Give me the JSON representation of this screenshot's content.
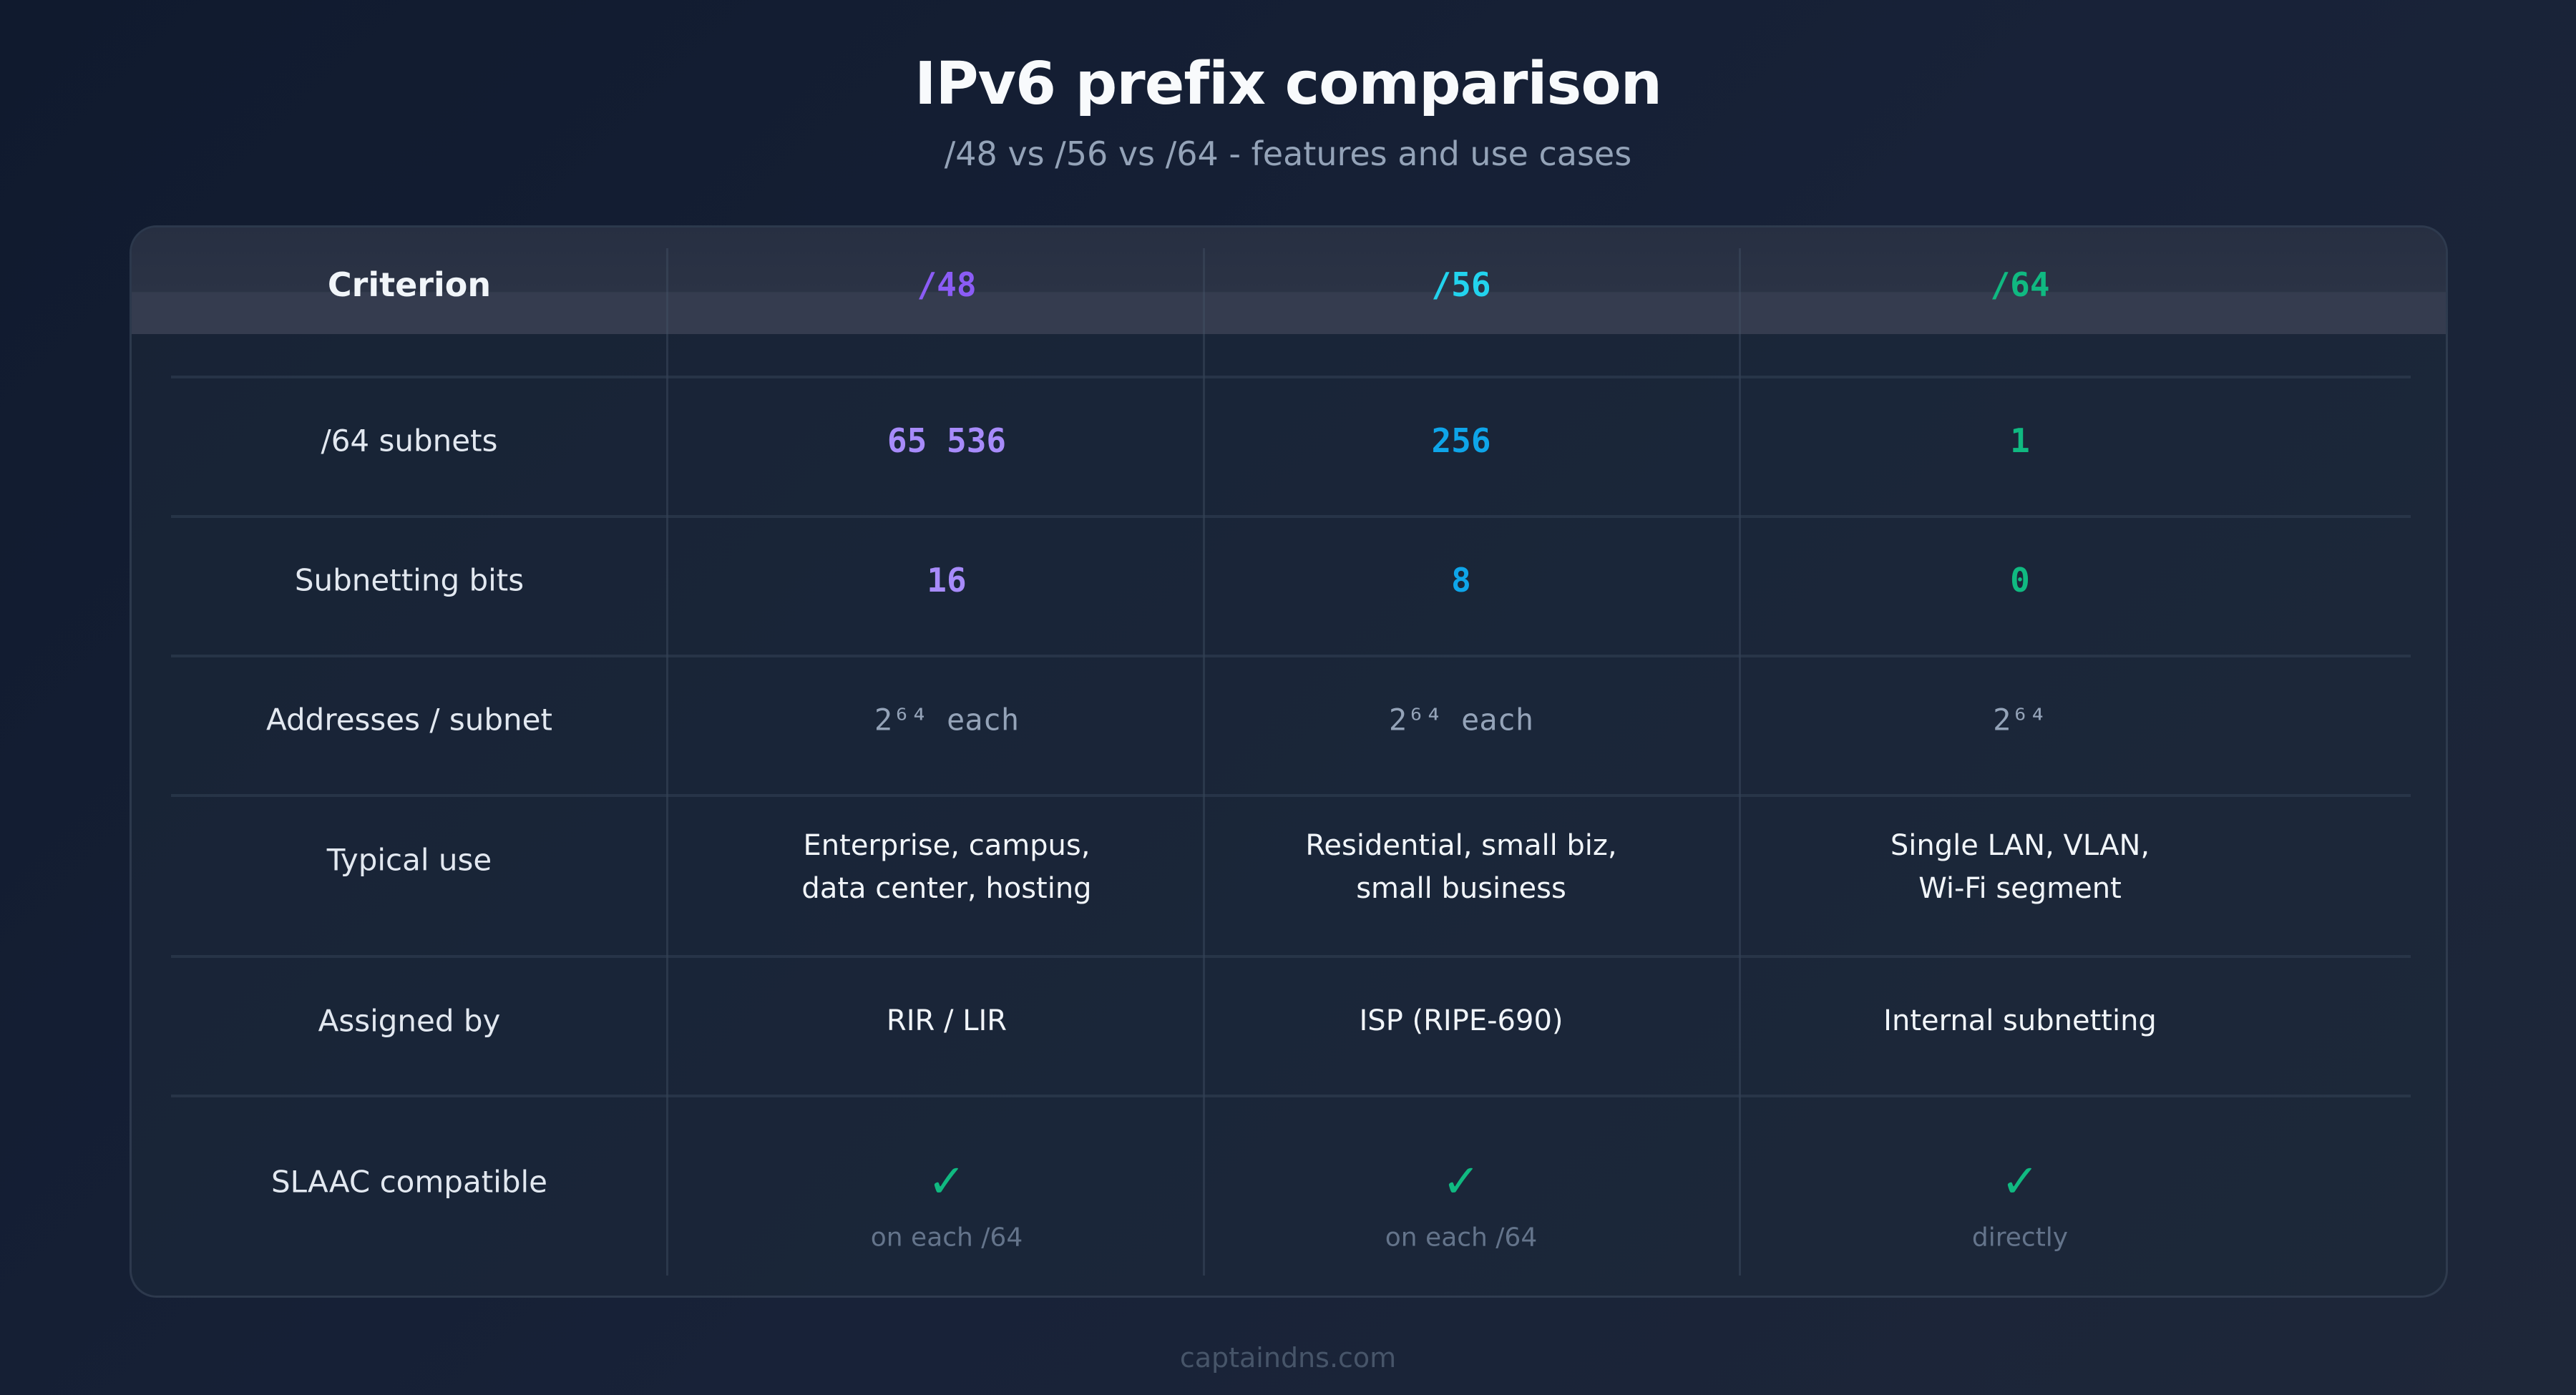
{
  "title": "IPv6 prefix comparison",
  "subtitle": "/48 vs /56 vs /64 - features and use cases",
  "colors": {
    "p48": "#8b5cf6",
    "p56": "#22d3ee",
    "p64": "#10b981",
    "v48": "#a78bfa",
    "v56": "#0ea5e9",
    "check": "#10b981"
  },
  "header": [
    "Criterion",
    "/48",
    "/56",
    "/64"
  ],
  "rows": [
    {
      "label": "/64 subnets",
      "values": [
        "65 536",
        "256",
        "1"
      ]
    },
    {
      "label": "Subnetting bits",
      "values": [
        "16",
        "8",
        "0"
      ]
    },
    {
      "label": "Addresses / subnet",
      "values": [
        "2⁶⁴ each",
        "2⁶⁴ each",
        "2⁶⁴"
      ]
    },
    {
      "label": "Typical use",
      "values": [
        [
          "Enterprise, campus,",
          "data center, hosting"
        ],
        [
          "Residential, small biz,",
          "small business"
        ],
        [
          "Single LAN, VLAN,",
          "Wi-Fi segment"
        ]
      ]
    },
    {
      "label": "Assigned by",
      "values": [
        "RIR / LIR",
        "ISP (RIPE-690)",
        "Internal subnetting"
      ]
    },
    {
      "label": "SLAAC compatible",
      "icon": "check-icon",
      "values": [
        "on each /64",
        "on each /64",
        "directly"
      ]
    }
  ],
  "footer": "captaindns.com"
}
